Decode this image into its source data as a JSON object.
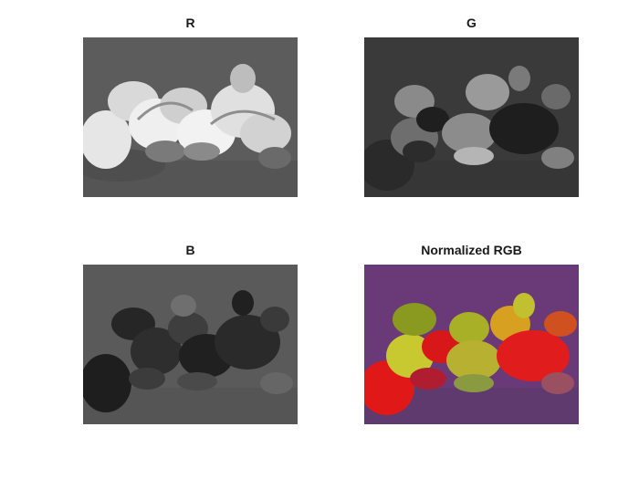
{
  "figure": {
    "panels": [
      {
        "key": "r",
        "title": "R"
      },
      {
        "key": "g",
        "title": "G"
      },
      {
        "key": "b",
        "title": "B"
      },
      {
        "key": "n",
        "title": "Normalized RGB"
      }
    ]
  },
  "colors": {
    "r_background": "#5c5c5c",
    "g_background": "#3a3a3a",
    "b_background": "#5a5a5a",
    "n_background": "#6a3a78"
  }
}
